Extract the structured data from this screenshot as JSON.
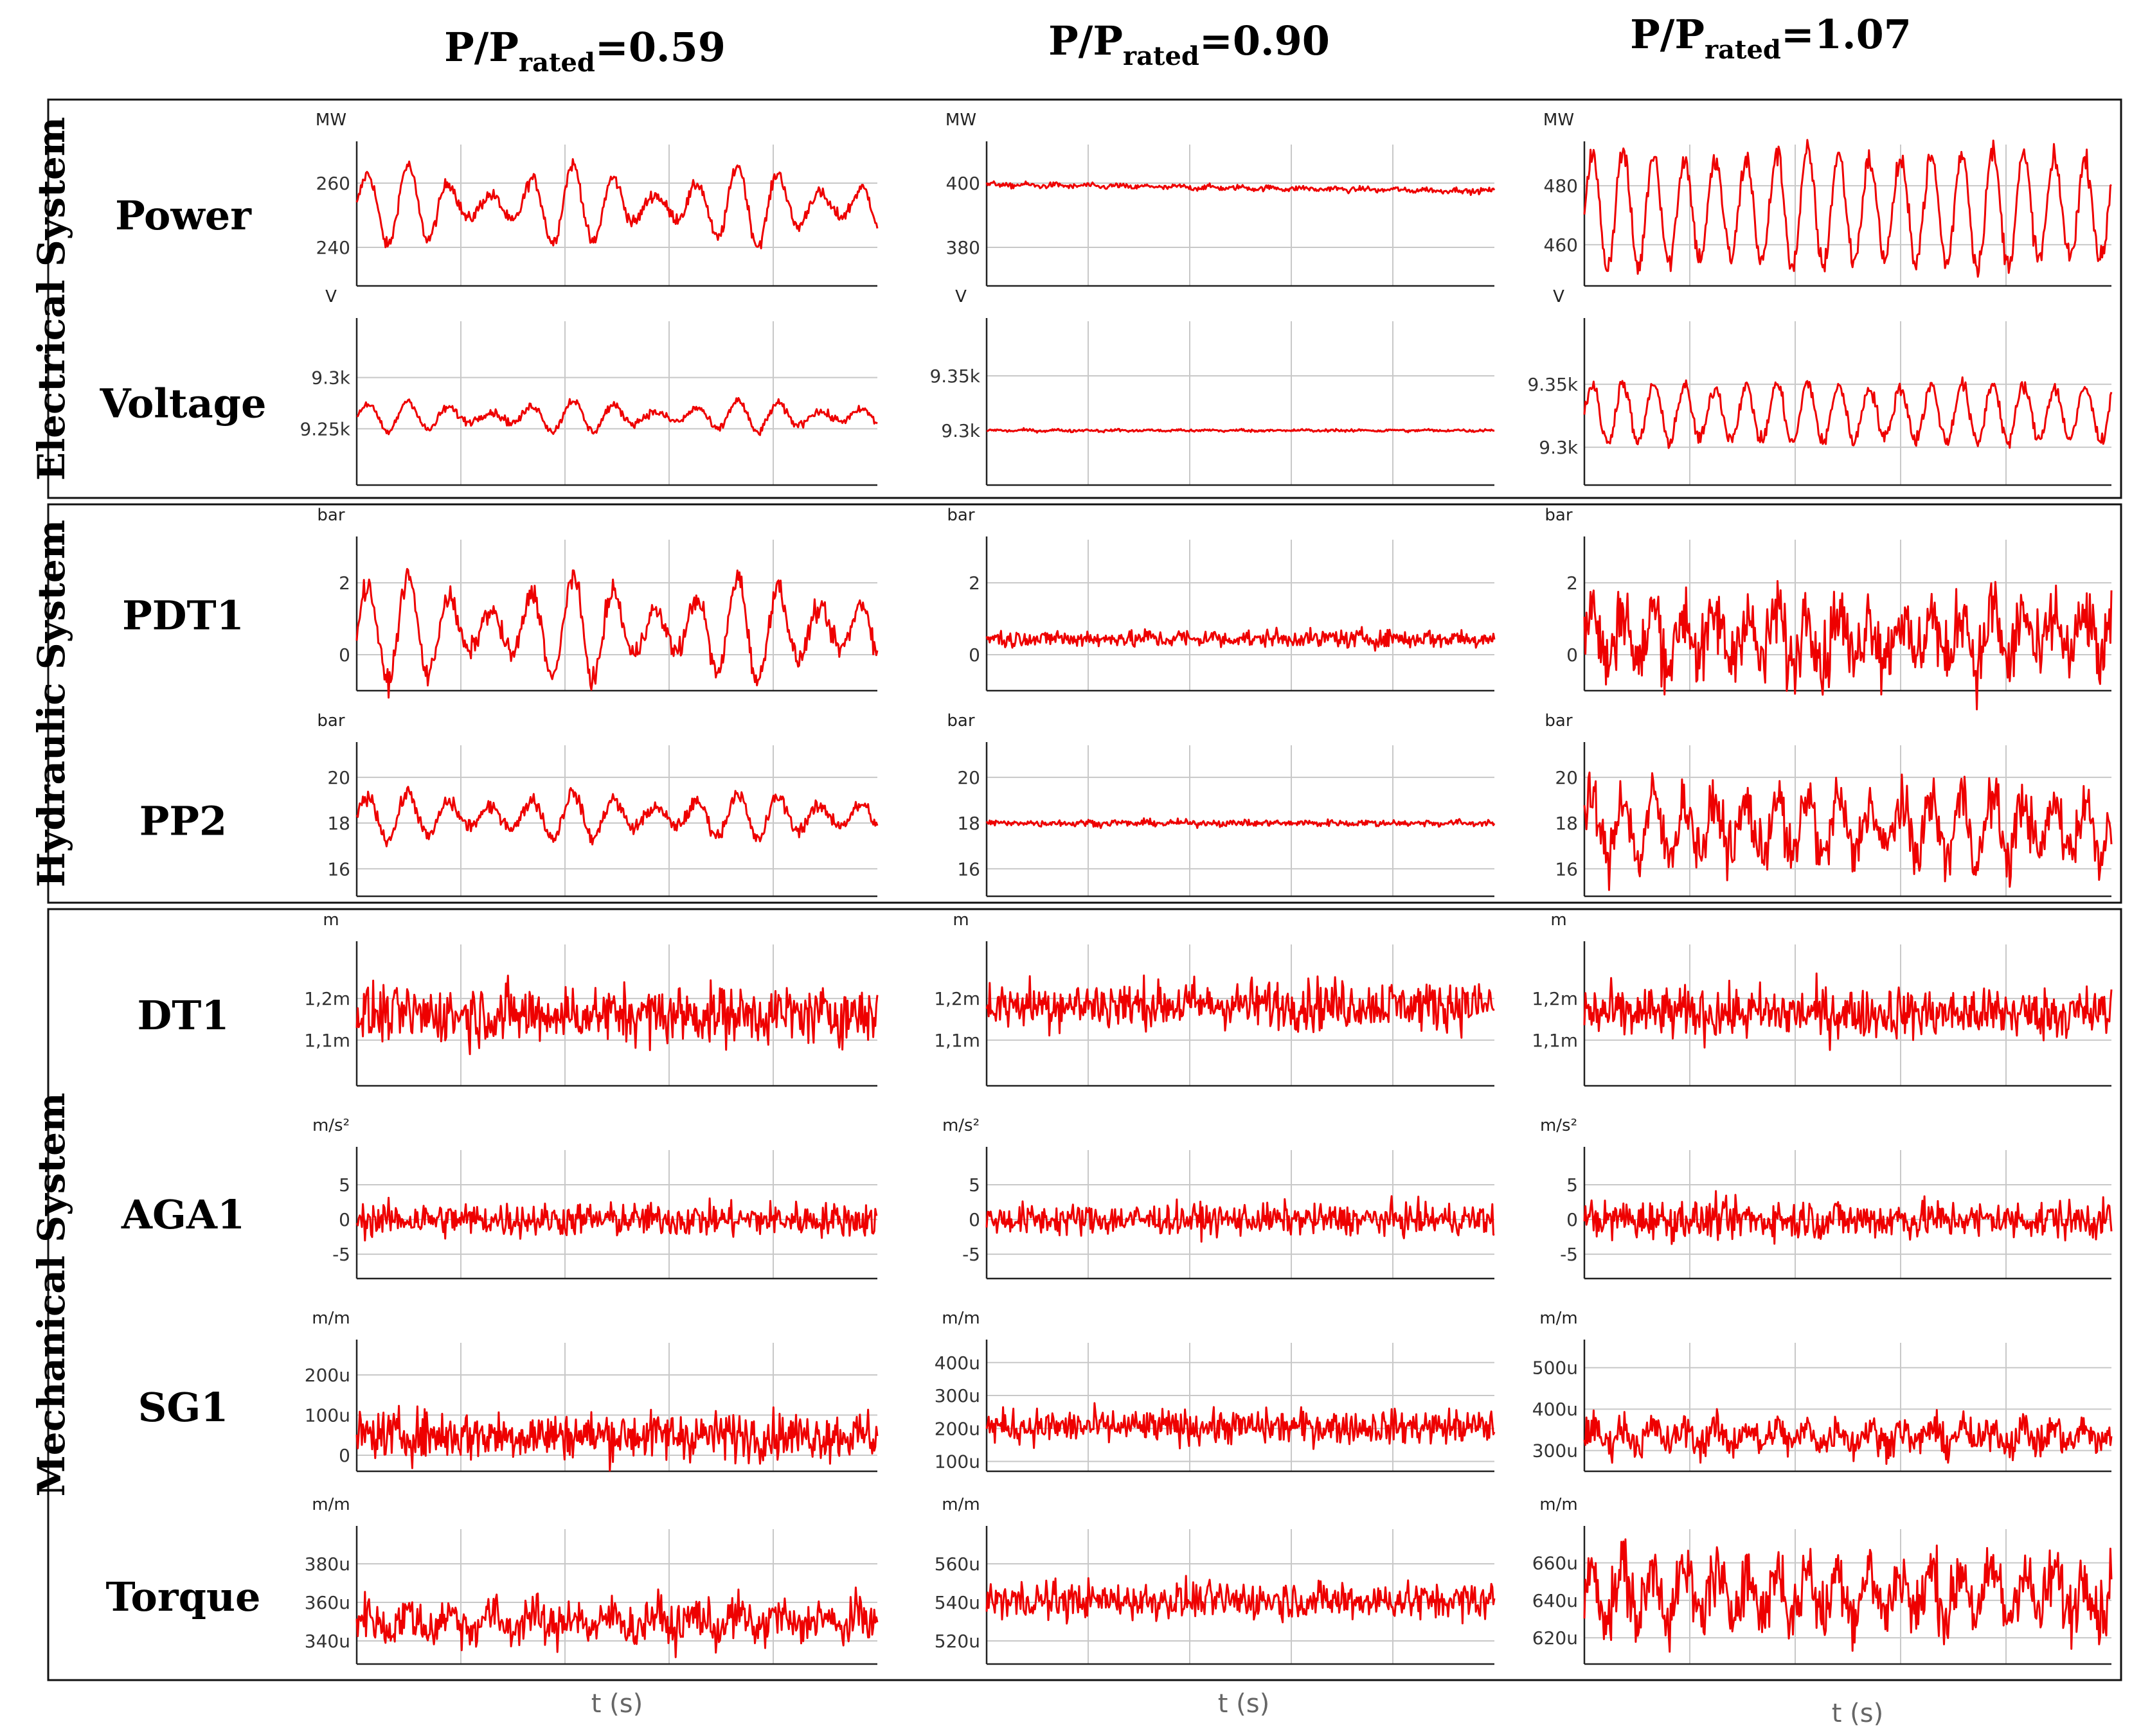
{
  "chart_data": {
    "type": "line",
    "title": "",
    "xlabel": "t (s)",
    "columns": [
      {
        "label_main": "P/P",
        "label_sub": "rated",
        "label_value": "=0.59"
      },
      {
        "label_main": "P/P",
        "label_sub": "rated",
        "label_value": "=0.90"
      },
      {
        "label_main": "P/P",
        "label_sub": "rated",
        "label_value": "=1.07"
      }
    ],
    "sections": [
      "Electrical System",
      "Hydraulic System",
      "Mechanical System"
    ],
    "rows": [
      {
        "label": "Power",
        "section": 0,
        "panels": [
          {
            "unit": "MW",
            "ticks": [
              260,
              240
            ],
            "tick_labels": [
              "260",
              "240"
            ],
            "ylim": [
              228,
              272
            ],
            "mean": 253,
            "amp": 8,
            "period": 40,
            "noise": 1,
            "beat": 0.6
          },
          {
            "unit": "MW",
            "ticks": [
              400,
              380
            ],
            "tick_labels": [
              "400",
              "380"
            ],
            "ylim": [
              368,
              412
            ],
            "mean": 399.5,
            "amp": 0.3,
            "period": 30,
            "noise": 0.4,
            "beat": 0,
            "drift": -2
          },
          {
            "unit": "MW",
            "ticks": [
              480,
              460
            ],
            "tick_labels": [
              "480",
              "460"
            ],
            "ylim": [
              446,
              494
            ],
            "mean": 472,
            "amp": 18,
            "period": 30,
            "noise": 2,
            "beat": 0.1
          }
        ]
      },
      {
        "label": "Voltage",
        "section": 0,
        "panels": [
          {
            "unit": "V",
            "ticks": [
              9300,
              9250
            ],
            "tick_labels": [
              "9.3k",
              "9.25k"
            ],
            "ylim": [
              9195,
              9355
            ],
            "mean": 9262,
            "amp": 10,
            "period": 40,
            "noise": 2,
            "beat": 0.6
          },
          {
            "unit": "V",
            "ticks": [
              9350,
              9300
            ],
            "tick_labels": [
              "9.35k",
              "9.3k"
            ],
            "ylim": [
              9250,
              9400
            ],
            "mean": 9300,
            "amp": 0.5,
            "period": 30,
            "noise": 0.6,
            "beat": 0
          },
          {
            "unit": "V",
            "ticks": [
              9350,
              9300
            ],
            "tick_labels": [
              "9.35k",
              "9.3k"
            ],
            "ylim": [
              9270,
              9400
            ],
            "mean": 9327,
            "amp": 22,
            "period": 30,
            "noise": 3,
            "beat": 0.1
          }
        ]
      },
      {
        "label": "PDT1",
        "section": 1,
        "panels": [
          {
            "unit": "bar",
            "ticks": [
              2,
              0
            ],
            "tick_labels": [
              "2",
              "0"
            ],
            "ylim": [
              -1,
              3.2
            ],
            "mean": 0.7,
            "amp": 1.0,
            "period": 40,
            "noise": 0.15,
            "beat": 0.5
          },
          {
            "unit": "bar",
            "ticks": [
              2,
              0
            ],
            "tick_labels": [
              "2",
              "0"
            ],
            "ylim": [
              -1,
              3.2
            ],
            "mean": 0.45,
            "amp": 0.05,
            "period": 30,
            "noise": 0.12,
            "beat": 0
          },
          {
            "unit": "bar",
            "ticks": [
              2,
              0
            ],
            "tick_labels": [
              "2",
              "0"
            ],
            "ylim": [
              -1,
              3.2
            ],
            "mean": 0.5,
            "amp": 0.7,
            "period": 30,
            "noise": 0.5,
            "beat": 0.2
          }
        ]
      },
      {
        "label": "PP2",
        "section": 1,
        "panels": [
          {
            "unit": "bar",
            "ticks": [
              20,
              18,
              16
            ],
            "tick_labels": [
              "20",
              "18",
              "16"
            ],
            "ylim": [
              14.8,
              21.4
            ],
            "mean": 18.3,
            "amp": 0.7,
            "period": 40,
            "noise": 0.15,
            "beat": 0.5
          },
          {
            "unit": "bar",
            "ticks": [
              20,
              18,
              16
            ],
            "tick_labels": [
              "20",
              "18",
              "16"
            ],
            "ylim": [
              14.8,
              21.4
            ],
            "mean": 18,
            "amp": 0.03,
            "period": 30,
            "noise": 0.07,
            "beat": 0
          },
          {
            "unit": "bar",
            "ticks": [
              20,
              18,
              16
            ],
            "tick_labels": [
              "20",
              "18",
              "16"
            ],
            "ylim": [
              14.8,
              21.4
            ],
            "mean": 17.8,
            "amp": 1.2,
            "period": 30,
            "noise": 0.6,
            "beat": 0.2
          }
        ]
      },
      {
        "label": "DT1",
        "section": 2,
        "panels": [
          {
            "unit": "m",
            "ticks": [
              0.0012,
              0.0011
            ],
            "tick_labels": [
              "1,2m",
              "1,1m"
            ],
            "ylim": [
              0.00099,
              0.00133
            ],
            "mean": 0.001162,
            "amp": 1e-05,
            "period": 8,
            "noise": 3.4e-05,
            "beat": 0
          },
          {
            "unit": "m",
            "ticks": [
              0.0012,
              0.0011
            ],
            "tick_labels": [
              "1,2m",
              "1,1m"
            ],
            "ylim": [
              0.00099,
              0.00133
            ],
            "mean": 0.001185,
            "amp": 1e-05,
            "period": 8,
            "noise": 2.8e-05,
            "beat": 0
          },
          {
            "unit": "m",
            "ticks": [
              0.0012,
              0.0011
            ],
            "tick_labels": [
              "1,2m",
              "1,1m"
            ],
            "ylim": [
              0.00099,
              0.00133
            ],
            "mean": 0.001165,
            "amp": 1e-05,
            "period": 8,
            "noise": 3e-05,
            "beat": 0
          }
        ]
      },
      {
        "label": "AGA1",
        "section": 2,
        "panels": [
          {
            "unit": "m/s²",
            "ticks": [
              5,
              0,
              -5
            ],
            "tick_labels": [
              "5",
              "0",
              "-5"
            ],
            "ylim": [
              -8.5,
              10
            ],
            "mean": 0,
            "amp": 0.2,
            "period": 8,
            "noise": 1.2,
            "beat": 0
          },
          {
            "unit": "m/s²",
            "ticks": [
              5,
              0,
              -5
            ],
            "tick_labels": [
              "5",
              "0",
              "-5"
            ],
            "ylim": [
              -8.5,
              10
            ],
            "mean": 0,
            "amp": 0.2,
            "period": 8,
            "noise": 1.1,
            "beat": 0
          },
          {
            "unit": "m/s²",
            "ticks": [
              5,
              0,
              -5
            ],
            "tick_labels": [
              "5",
              "0",
              "-5"
            ],
            "ylim": [
              -8.5,
              10
            ],
            "mean": 0,
            "amp": 0.3,
            "period": 30,
            "noise": 1.4,
            "beat": 0
          }
        ]
      },
      {
        "label": "SG1",
        "section": 2,
        "panels": [
          {
            "unit": "m/m",
            "ticks": [
              0.0002,
              0.0001,
              0
            ],
            "tick_labels": [
              "200u",
              "100u",
              "0"
            ],
            "ylim": [
              -4e-05,
              0.00028
            ],
            "mean": 5e-05,
            "amp": 5e-06,
            "period": 8,
            "noise": 3e-05,
            "beat": 0
          },
          {
            "unit": "m/m",
            "ticks": [
              0.0004,
              0.0003,
              0.0002,
              0.0001
            ],
            "tick_labels": [
              "400u",
              "300u",
              "200u",
              "100u"
            ],
            "ylim": [
              7e-05,
              0.00046
            ],
            "mean": 0.000205,
            "amp": 5e-06,
            "period": 8,
            "noise": 2.5e-05,
            "beat": 0
          },
          {
            "unit": "m/m",
            "ticks": [
              0.0005,
              0.0004,
              0.0003
            ],
            "tick_labels": [
              "500u",
              "400u",
              "300u"
            ],
            "ylim": [
              0.00025,
              0.00056
            ],
            "mean": 0.000335,
            "amp": 2e-05,
            "period": 30,
            "noise": 2e-05,
            "beat": 0
          }
        ]
      },
      {
        "label": "Torque",
        "section": 2,
        "panels": [
          {
            "unit": "m/m",
            "ticks": [
              0.00038,
              0.00036,
              0.00034
            ],
            "tick_labels": [
              "380u",
              "360u",
              "340u"
            ],
            "ylim": [
              0.000328,
              0.000398
            ],
            "mean": 0.00035,
            "amp": 4e-06,
            "period": 40,
            "noise": 5.5e-06,
            "beat": 0
          },
          {
            "unit": "m/m",
            "ticks": [
              0.00056,
              0.00054,
              0.00052
            ],
            "tick_labels": [
              "560u",
              "540u",
              "520u"
            ],
            "ylim": [
              0.000508,
              0.000578
            ],
            "mean": 0.000541,
            "amp": 2e-06,
            "period": 8,
            "noise": 4.5e-06,
            "beat": 0
          },
          {
            "unit": "m/m",
            "ticks": [
              0.00066,
              0.00064,
              0.00062
            ],
            "tick_labels": [
              "660u",
              "640u",
              "620u"
            ],
            "ylim": [
              0.000606,
              0.000678
            ],
            "mean": 0.000644,
            "amp": 1.2e-05,
            "period": 30,
            "noise": 9e-06,
            "beat": 0.1
          }
        ]
      }
    ]
  }
}
